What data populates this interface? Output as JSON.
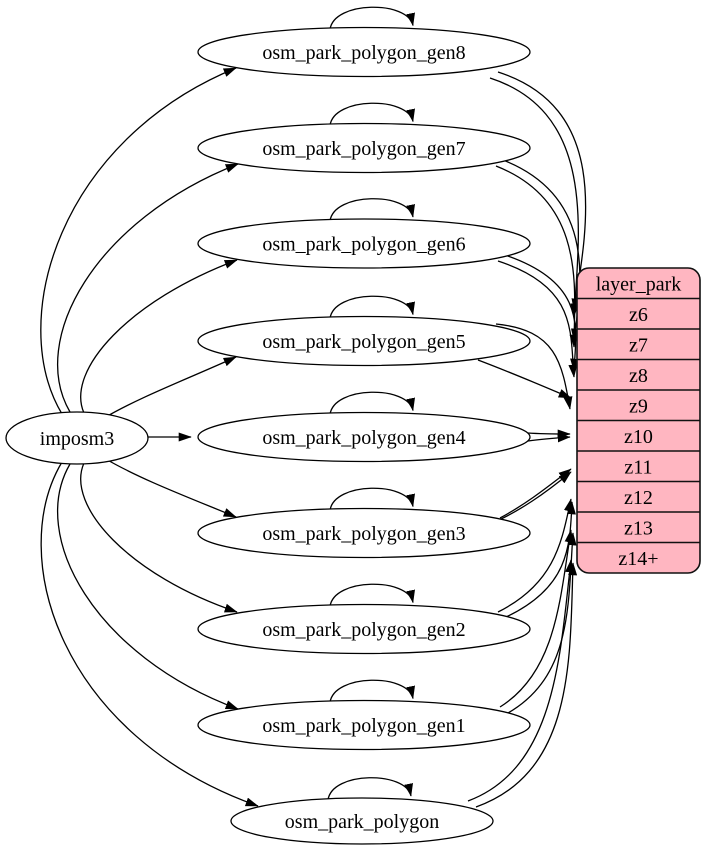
{
  "diagram": {
    "kind": "etl-graph",
    "colors": {
      "background": "#ffffff",
      "node_fill": "#ffffff",
      "node_stroke": "#000000",
      "edge": "#000000",
      "table_fill": "#ffb6c1",
      "table_stroke": "#111111",
      "text": "#000000"
    },
    "source_node": {
      "id": "imposm3",
      "label": "imposm3"
    },
    "generalized_tables": [
      {
        "id": "osm_park_polygon_gen8",
        "label": "osm_park_polygon_gen8"
      },
      {
        "id": "osm_park_polygon_gen7",
        "label": "osm_park_polygon_gen7"
      },
      {
        "id": "osm_park_polygon_gen6",
        "label": "osm_park_polygon_gen6"
      },
      {
        "id": "osm_park_polygon_gen5",
        "label": "osm_park_polygon_gen5"
      },
      {
        "id": "osm_park_polygon_gen4",
        "label": "osm_park_polygon_gen4"
      },
      {
        "id": "osm_park_polygon_gen3",
        "label": "osm_park_polygon_gen3"
      },
      {
        "id": "osm_park_polygon_gen2",
        "label": "osm_park_polygon_gen2"
      },
      {
        "id": "osm_park_polygon_gen1",
        "label": "osm_park_polygon_gen1"
      },
      {
        "id": "osm_park_polygon",
        "label": "osm_park_polygon"
      }
    ],
    "layer_table": {
      "id": "layer_park",
      "header": "layer_park",
      "rows": [
        "z6",
        "z7",
        "z8",
        "z9",
        "z10",
        "z11",
        "z12",
        "z13",
        "z14+"
      ]
    },
    "edges": {
      "from_source": [
        "osm_park_polygon_gen8",
        "osm_park_polygon_gen7",
        "osm_park_polygon_gen6",
        "osm_park_polygon_gen5",
        "osm_park_polygon_gen4",
        "osm_park_polygon_gen3",
        "osm_park_polygon_gen2",
        "osm_park_polygon_gen1",
        "osm_park_polygon"
      ],
      "self_loops": [
        "osm_park_polygon_gen8",
        "osm_park_polygon_gen7",
        "osm_park_polygon_gen6",
        "osm_park_polygon_gen5",
        "osm_park_polygon_gen4",
        "osm_park_polygon_gen3",
        "osm_park_polygon_gen2",
        "osm_park_polygon_gen1",
        "osm_park_polygon"
      ],
      "to_layer": [
        {
          "from": "osm_park_polygon_gen8",
          "to": "z6",
          "lines": 2
        },
        {
          "from": "osm_park_polygon_gen7",
          "to": "z7",
          "lines": 2
        },
        {
          "from": "osm_park_polygon_gen6",
          "to": "z8",
          "lines": 2
        },
        {
          "from": "osm_park_polygon_gen5",
          "to": "z9",
          "lines": 2
        },
        {
          "from": "osm_park_polygon_gen4",
          "to": "z10",
          "lines": 2
        },
        {
          "from": "osm_park_polygon_gen3",
          "to": "z11",
          "lines": 2
        },
        {
          "from": "osm_park_polygon_gen2",
          "to": "z12",
          "lines": 2
        },
        {
          "from": "osm_park_polygon_gen1",
          "to": "z13",
          "lines": 2
        },
        {
          "from": "osm_park_polygon",
          "to": "z14+",
          "lines": 2
        }
      ]
    }
  }
}
